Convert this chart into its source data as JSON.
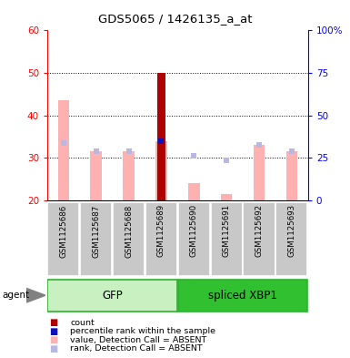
{
  "title": "GDS5065 / 1426135_a_at",
  "samples": [
    "GSM1125686",
    "GSM1125687",
    "GSM1125688",
    "GSM1125689",
    "GSM1125690",
    "GSM1125691",
    "GSM1125692",
    "GSM1125693"
  ],
  "ylim_left": [
    20,
    60
  ],
  "ylim_right": [
    0,
    100
  ],
  "yticks_left": [
    20,
    30,
    40,
    50,
    60
  ],
  "yticks_right": [
    0,
    25,
    50,
    75,
    100
  ],
  "ytick_labels_left": [
    "20",
    "30",
    "40",
    "50",
    "60"
  ],
  "ytick_labels_right": [
    "0",
    "25",
    "50",
    "75",
    "100%"
  ],
  "absent_value": [
    43.5,
    31.5,
    31.5,
    34.0,
    24.0,
    21.5,
    33.0,
    31.5
  ],
  "absent_rank": [
    33.5,
    31.5,
    31.5,
    null,
    30.5,
    29.5,
    33.0,
    31.5
  ],
  "count_value": [
    null,
    null,
    null,
    50.0,
    null,
    null,
    null,
    null
  ],
  "count_rank": [
    null,
    null,
    null,
    34.0,
    null,
    null,
    null,
    null
  ],
  "color_absent_bar": "#ffb0b0",
  "color_absent_rank": "#b8b8e0",
  "color_count": "#b00000",
  "color_rank": "#1010c0",
  "color_gfp_light": "#c8f0c0",
  "color_gfp_border": "#30b030",
  "color_xbp1": "#30c030",
  "color_xbp1_border": "#30b030",
  "color_grey_box": "#c8c8c8",
  "legend_items": [
    "count",
    "percentile rank within the sample",
    "value, Detection Call = ABSENT",
    "rank, Detection Call = ABSENT"
  ],
  "legend_colors": [
    "#b00000",
    "#1010c0",
    "#ffb0b0",
    "#b8b8e0"
  ],
  "agent_label": "agent",
  "group_label_gfp": "GFP",
  "group_label_xbp1": "spliced XBP1",
  "bar_width": 0.35,
  "count_bar_width": 0.25
}
